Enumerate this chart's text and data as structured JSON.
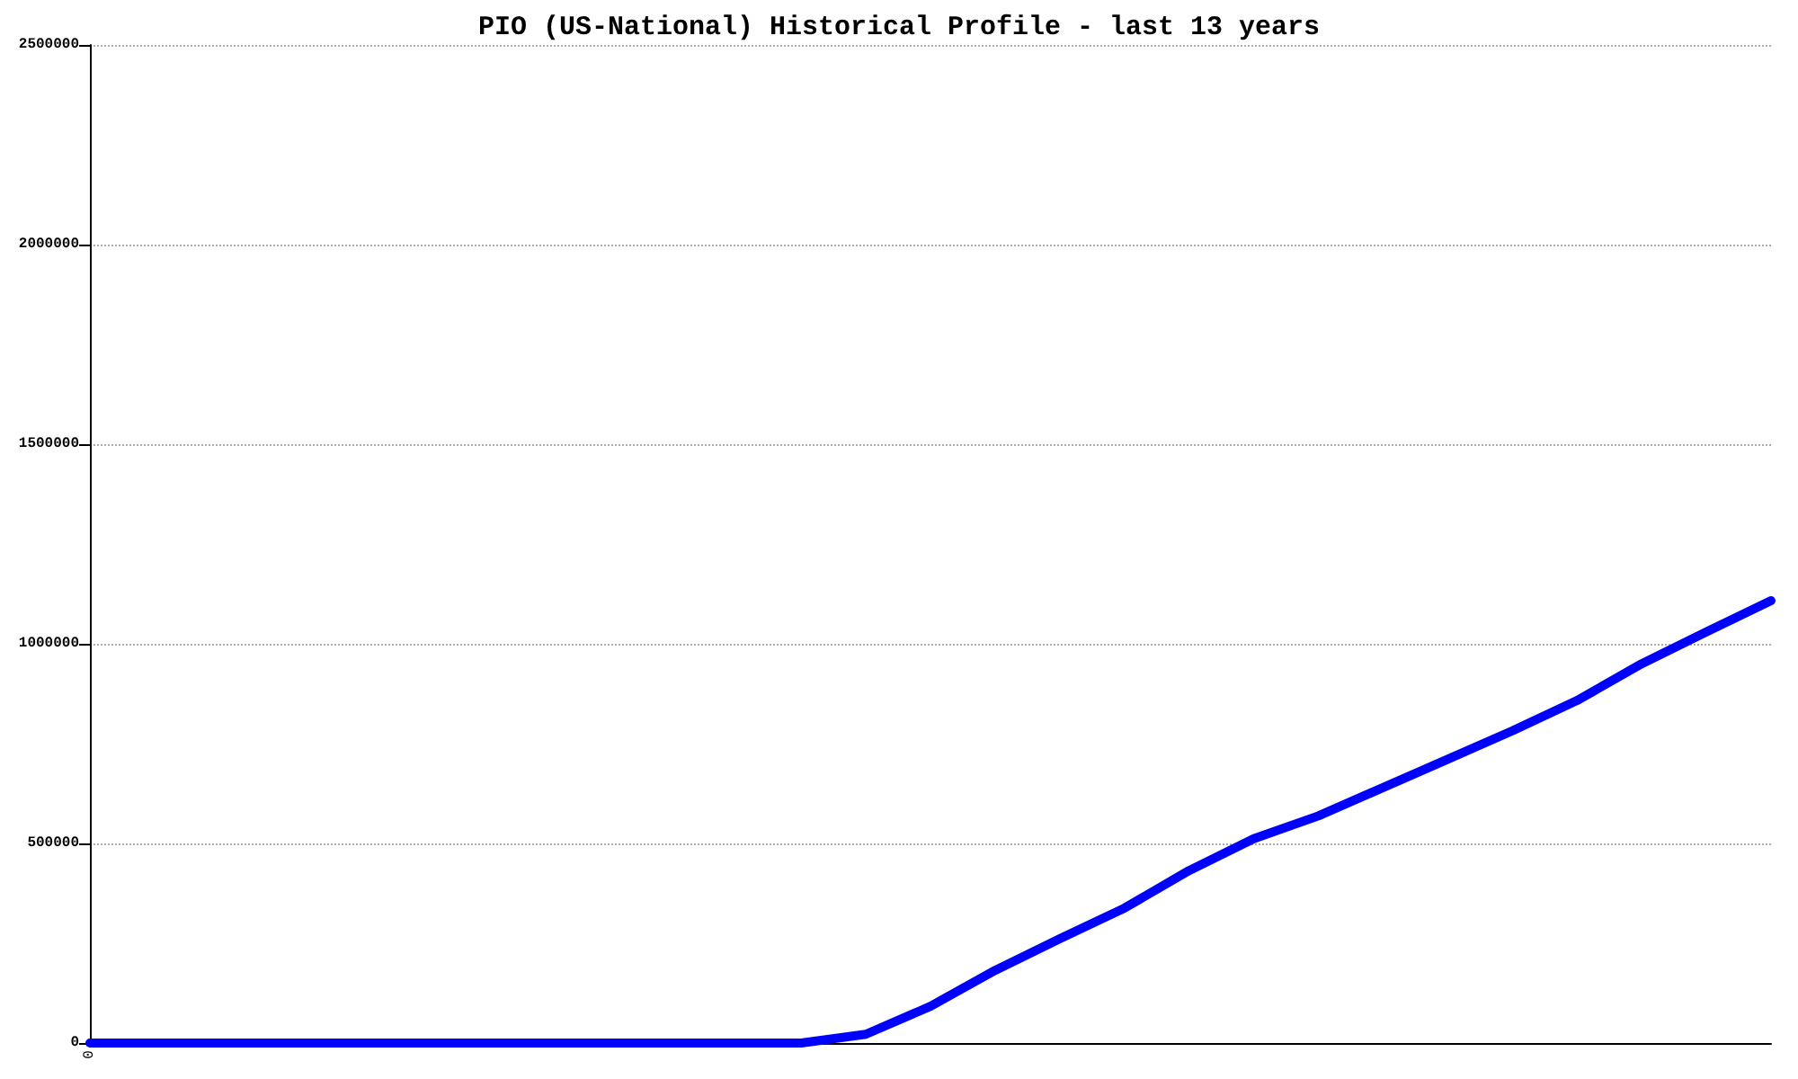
{
  "chart_data": {
    "type": "line",
    "title": "PIO (US-National) Historical Profile - last 13 years",
    "categories": [
      "0",
      null,
      null,
      null,
      null,
      null,
      null,
      null,
      null,
      null,
      null,
      null,
      null,
      null,
      null,
      null,
      null,
      null,
      null,
      null,
      null,
      null,
      null,
      null,
      null,
      null,
      null
    ],
    "series": [
      {
        "color": "#0000ff",
        "values": [
          0,
          0,
          0,
          0,
          0,
          0,
          0,
          0,
          0,
          0,
          0,
          0,
          22000,
          92000,
          182000,
          261000,
          338000,
          432000,
          512000,
          569000,
          640000,
          711000,
          782000,
          858000,
          950000,
          1030000,
          1108000
        ]
      }
    ],
    "ylim": [
      0,
      2500000
    ],
    "yticks": [
      0,
      500000,
      1000000,
      1500000,
      2000000,
      2500000
    ],
    "grid": "y",
    "marker": "none",
    "line_style": "solid"
  }
}
